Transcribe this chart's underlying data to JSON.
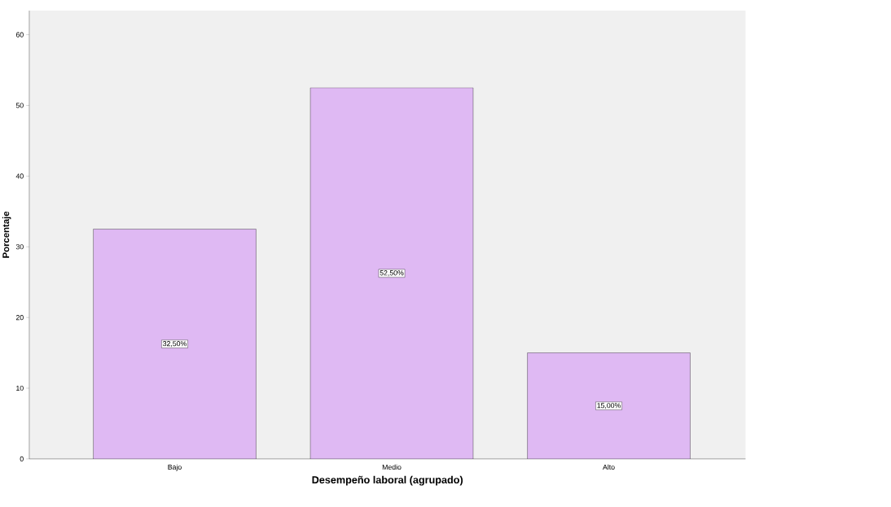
{
  "chart_data": {
    "type": "bar",
    "xlabel": "Desempeño laboral (agrupado)",
    "ylabel": "Porcentaje",
    "categories": [
      "Bajo",
      "Medio",
      "Alto"
    ],
    "values": [
      32.5,
      52.5,
      15.0
    ],
    "value_labels": [
      "32,50%",
      "52,50%",
      "15,00%"
    ],
    "color": "#dfb9f3",
    "ylim": [
      0,
      63.4
    ],
    "yticks": [
      0,
      10,
      20,
      30,
      40,
      50,
      60
    ],
    "grid": false
  }
}
